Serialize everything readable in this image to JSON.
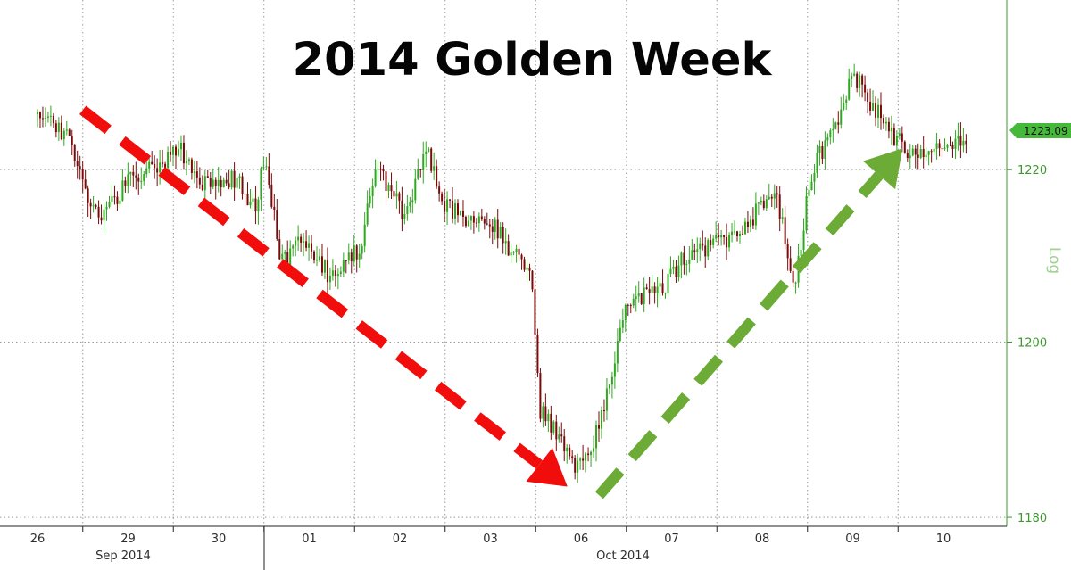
{
  "chart_data": {
    "type": "candlestick",
    "title": "2014 Golden Week",
    "y_scale_label": "Log",
    "x_ticks": [
      "26",
      "29",
      "30",
      "01",
      "02",
      "03",
      "06",
      "07",
      "08",
      "09",
      "10"
    ],
    "month_labels": [
      {
        "text": "Sep 2014",
        "between": [
          "29",
          "30"
        ]
      },
      {
        "text": "Oct 2014",
        "between": [
          "06",
          "07"
        ]
      }
    ],
    "y_ticks": [
      1180,
      1200,
      1220
    ],
    "ylim": [
      1179,
      1240
    ],
    "last_price": 1223.09,
    "last_price_label": "1223.09",
    "price_path": [
      [
        0,
        1226.5
      ],
      [
        0.35,
        1223.5
      ],
      [
        0.55,
        1216
      ],
      [
        0.75,
        1214.5
      ],
      [
        1.0,
        1219
      ],
      [
        1.3,
        1220
      ],
      [
        1.55,
        1223
      ],
      [
        1.8,
        1218
      ],
      [
        2.2,
        1219
      ],
      [
        2.4,
        1215.5
      ],
      [
        2.5,
        1221
      ],
      [
        2.7,
        1209
      ],
      [
        2.9,
        1211.5
      ],
      [
        3.2,
        1208
      ],
      [
        3.55,
        1210.5
      ],
      [
        3.75,
        1220
      ],
      [
        4.05,
        1214.5
      ],
      [
        4.3,
        1222
      ],
      [
        4.5,
        1216
      ],
      [
        4.7,
        1214
      ],
      [
        5.0,
        1214
      ],
      [
        5.2,
        1211
      ],
      [
        5.45,
        1207
      ],
      [
        5.55,
        1192
      ],
      [
        5.8,
        1189
      ],
      [
        5.95,
        1185.5
      ],
      [
        6.1,
        1187
      ],
      [
        6.3,
        1195
      ],
      [
        6.5,
        1205
      ],
      [
        6.9,
        1206
      ],
      [
        7.15,
        1210
      ],
      [
        7.4,
        1211
      ],
      [
        7.8,
        1213
      ],
      [
        8.0,
        1216
      ],
      [
        8.15,
        1218
      ],
      [
        8.35,
        1206.5
      ],
      [
        8.55,
        1220
      ],
      [
        8.85,
        1226
      ],
      [
        9.0,
        1231
      ],
      [
        9.2,
        1228
      ],
      [
        9.4,
        1224.5
      ],
      [
        9.65,
        1222
      ],
      [
        9.85,
        1222.5
      ],
      [
        10.0,
        1222.5
      ],
      [
        10.25,
        1223.09
      ]
    ],
    "annotations": [
      {
        "type": "arrow",
        "color": "#f20d0d",
        "style": "dashed",
        "from": [
          0.5,
          1227.0
        ],
        "to": [
          5.85,
          1183.5
        ]
      },
      {
        "type": "arrow",
        "color": "#6bab36",
        "style": "dashed",
        "from": [
          6.2,
          1182.5
        ],
        "to": [
          9.55,
          1222.5
        ]
      }
    ],
    "up_color": "#2fa81f",
    "down_color": "#7a0a0a",
    "axis_color": "#3a9a2a",
    "grid": true,
    "legend": "none"
  }
}
